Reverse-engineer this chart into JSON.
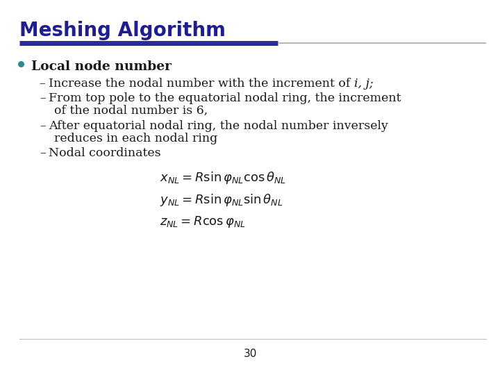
{
  "title": "Meshing Algorithm",
  "title_color": "#1E1E8F",
  "title_fontsize": 20,
  "line_color_thick": "#2B2B9B",
  "line_color_thin": "#AAAAAA",
  "bullet_color": "#2E8B8B",
  "bullet_text": "Local node number",
  "sub_item1_normal": "Increase the nodal number with the increment of ",
  "sub_item1_italic": "i, j",
  "sub_item1_suffix": ";",
  "sub_item2_line1": "From top pole to the equatorial nodal ring, the increment",
  "sub_item2_line2": "of the nodal number is 6,",
  "sub_item3_line1": "After equatorial nodal ring, the nodal number inversely",
  "sub_item3_line2": "reduces in each nodal ring",
  "sub_item4": "Nodal coordinates",
  "equation1": "$x_{NL} = R\\sin\\varphi_{NL}\\cos\\theta_{NL}$",
  "equation2": "$y_{NL} = R\\sin\\varphi_{NL}\\sin\\theta_{NL}$",
  "equation3": "$z_{NL} = R\\cos\\varphi_{NL}$",
  "page_number": "30",
  "bg_color": "#FFFFFF",
  "text_color": "#1a1a1a",
  "body_fontsize": 12.5,
  "bullet_fontsize": 13.5
}
